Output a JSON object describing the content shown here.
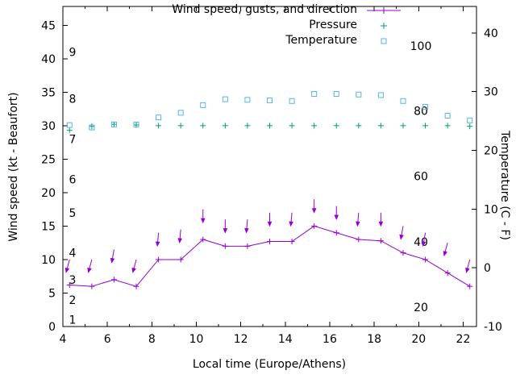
{
  "colors": {
    "wind": "#9400d3",
    "pressure": "#009e73",
    "temperature": "#56b4e9",
    "axis": "#000000",
    "background": "#ffffff"
  },
  "chart_data": {
    "type": "line",
    "title": "",
    "xlabel": "Local time (Europe/Athens)",
    "ylabel": "Wind speed (kt - Beaufort)",
    "y2label": "Temperature (C - F)",
    "x_range": [
      4,
      22.6
    ],
    "x_ticks": [
      4,
      6,
      8,
      10,
      12,
      14,
      16,
      18,
      20,
      22
    ],
    "x_minor_tick_step": 1,
    "y_left_range": [
      0,
      47.8
    ],
    "y_left_ticks": [
      0,
      5,
      10,
      15,
      20,
      25,
      30,
      35,
      40,
      45
    ],
    "y_right_range": [
      -10,
      44.5
    ],
    "y_right_ticks": [
      -10,
      0,
      10,
      20,
      30,
      40
    ],
    "grid": false,
    "legend_position": "top-right-inside",
    "legend": [
      {
        "label": "Wind speed, gusts, and direction",
        "series": "wind_speed_kt",
        "marker": "line-plus",
        "color_key": "wind"
      },
      {
        "label": "Pressure",
        "series": "pressure",
        "marker": "plus",
        "color_key": "pressure"
      },
      {
        "label": "Temperature",
        "series": "temperature_c",
        "marker": "square",
        "color_key": "temperature"
      }
    ],
    "beaufort_scale_labels": [
      {
        "label": "1",
        "kt": 1
      },
      {
        "label": "2",
        "kt": 4
      },
      {
        "label": "3",
        "kt": 7
      },
      {
        "label": "4",
        "kt": 11
      },
      {
        "label": "5",
        "kt": 17
      },
      {
        "label": "6",
        "kt": 22
      },
      {
        "label": "7",
        "kt": 28
      },
      {
        "label": "8",
        "kt": 34
      },
      {
        "label": "9",
        "kt": 41
      }
    ],
    "fahrenheit_scale_labels": [
      {
        "label": "20",
        "celsius": -6.7
      },
      {
        "label": "40",
        "celsius": 4.4
      },
      {
        "label": "60",
        "celsius": 15.6
      },
      {
        "label": "80",
        "celsius": 26.7
      },
      {
        "label": "100",
        "celsius": 37.8
      }
    ],
    "hours": [
      4.3,
      5.3,
      6.3,
      7.3,
      8.3,
      9.3,
      10.3,
      11.3,
      12.3,
      13.3,
      14.3,
      15.3,
      16.3,
      17.3,
      18.3,
      19.3,
      20.3,
      21.3,
      22.3
    ],
    "series": [
      {
        "name": "wind_gusts_kt",
        "axis": "left",
        "marker": "arrow-down",
        "line": false,
        "color_key": "wind",
        "values": [
          10,
          10,
          11.5,
          10,
          14,
          14.5,
          17.5,
          16,
          16,
          17,
          17,
          19,
          18,
          17,
          17,
          15,
          14,
          12.5,
          10
        ],
        "directions_deg": [
          15,
          15,
          10,
          15,
          5,
          5,
          0,
          0,
          5,
          0,
          5,
          0,
          0,
          5,
          0,
          10,
          10,
          15,
          15
        ]
      },
      {
        "name": "wind_speed_kt",
        "axis": "left",
        "marker": "plus",
        "line": true,
        "color_key": "wind",
        "values": [
          6.2,
          6,
          7,
          6,
          10,
          10,
          13,
          12,
          12,
          12.7,
          12.7,
          15,
          14,
          13,
          12.8,
          11,
          10,
          8,
          6
        ]
      },
      {
        "name": "pressure",
        "axis": "left",
        "marker": "plus",
        "line": false,
        "color_key": "pressure",
        "values": [
          29.3,
          29.9,
          30.2,
          30.1,
          30,
          30,
          30,
          30,
          30,
          30,
          30,
          30,
          30,
          30,
          30,
          30,
          30,
          30,
          29.9
        ]
      },
      {
        "name": "temperature_c",
        "axis": "right",
        "marker": "square",
        "line": false,
        "color_key": "temperature",
        "values": [
          24.3,
          23.9,
          24.4,
          24.4,
          25.6,
          26.4,
          27.7,
          28.7,
          28.6,
          28.5,
          28.4,
          29.6,
          29.6,
          29.5,
          29.4,
          28.4,
          27.4,
          25.9,
          25.1
        ]
      }
    ]
  }
}
